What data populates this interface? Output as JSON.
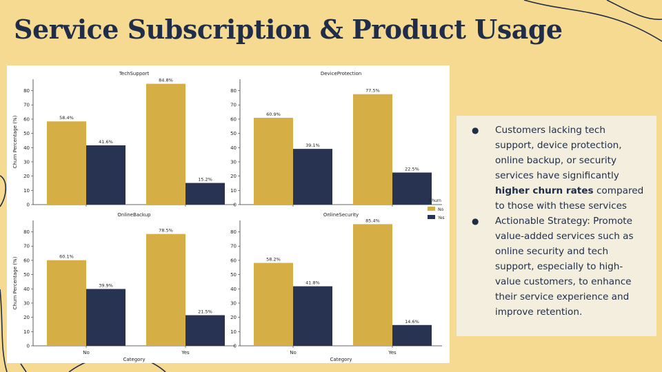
{
  "slide": {
    "title": "Service Subscription & Product Usage"
  },
  "colors": {
    "background": "#F6DA92",
    "title": "#1F2D48",
    "no": "#D5AE45",
    "yes": "#283352",
    "notes_bg": "#F3EEDE"
  },
  "notes": {
    "bullet1_pre": "Customers lacking tech support, device protection, online backup, or security services have significantly ",
    "bullet1_bold": "higher churn rates",
    "bullet1_post": " compared to those with these services",
    "bullet2": "Actionable Strategy: Promote value-added services such as online security and tech support, especially to high-value customers, to enhance their service experience and improve retention."
  },
  "chart_data": {
    "type": "bar",
    "ylabel": "Churn Percentage (%)",
    "xlabel": "Category",
    "ylim": [
      0,
      88
    ],
    "yticks": [
      "0",
      "10",
      "20",
      "30",
      "40",
      "50",
      "60",
      "70",
      "80"
    ],
    "categories": [
      "No",
      "Yes"
    ],
    "legend": {
      "title": "Churn",
      "entries": [
        "No",
        "Yes"
      ],
      "placement": "right"
    },
    "panels": [
      {
        "title": "TechSupport",
        "series": [
          {
            "name": "No",
            "values": [
              58.4,
              84.8
            ],
            "labels": [
              "58.4%",
              "84.8%"
            ]
          },
          {
            "name": "Yes",
            "values": [
              41.6,
              15.2
            ],
            "labels": [
              "41.6%",
              "15.2%"
            ]
          }
        ]
      },
      {
        "title": "DeviceProtection",
        "series": [
          {
            "name": "No",
            "values": [
              60.9,
              77.5
            ],
            "labels": [
              "60.9%",
              "77.5%"
            ]
          },
          {
            "name": "Yes",
            "values": [
              39.1,
              22.5
            ],
            "labels": [
              "39.1%",
              "22.5%"
            ]
          }
        ]
      },
      {
        "title": "OnlineBackup",
        "series": [
          {
            "name": "No",
            "values": [
              60.1,
              78.5
            ],
            "labels": [
              "60.1%",
              "78.5%"
            ]
          },
          {
            "name": "Yes",
            "values": [
              39.9,
              21.5
            ],
            "labels": [
              "39.9%",
              "21.5%"
            ]
          }
        ]
      },
      {
        "title": "OnlineSecurity",
        "series": [
          {
            "name": "No",
            "values": [
              58.2,
              85.4
            ],
            "labels": [
              "58.2%",
              "85.4%"
            ]
          },
          {
            "name": "Yes",
            "values": [
              41.8,
              14.6
            ],
            "labels": [
              "41.8%",
              "14.6%"
            ]
          }
        ]
      }
    ]
  }
}
